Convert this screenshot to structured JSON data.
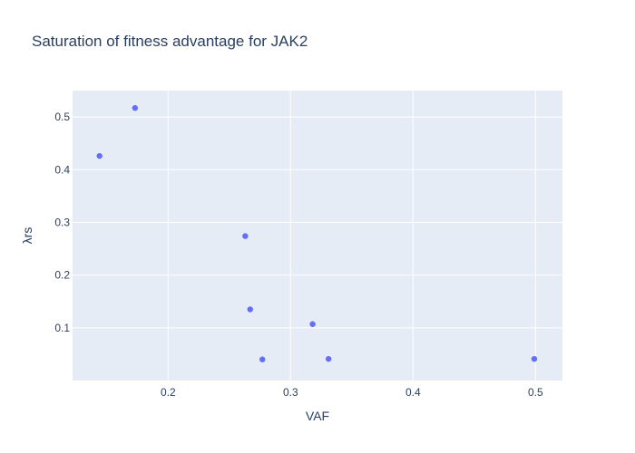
{
  "chart_data": {
    "type": "scatter",
    "title": "Saturation of fitness advantage for JAK2",
    "xlabel": "VAF",
    "ylabel": "λrs",
    "xlim": [
      0.122,
      0.522
    ],
    "ylim": [
      0.0,
      0.55
    ],
    "x_ticks": [
      0.2,
      0.3,
      0.4,
      0.5
    ],
    "x_tick_labels": [
      "0.2",
      "0.3",
      "0.4",
      "0.5"
    ],
    "y_ticks": [
      0.1,
      0.2,
      0.3,
      0.4,
      0.5
    ],
    "y_tick_labels": [
      "0.1",
      "0.2",
      "0.3",
      "0.4",
      "0.5"
    ],
    "grid": true,
    "legend": false,
    "marker_color": "#636efa",
    "plot_bg_color": "#e5ecf6",
    "text_color": "#2a3f5f",
    "series": [
      {
        "points": [
          {
            "x": 0.144,
            "y": 0.426
          },
          {
            "x": 0.173,
            "y": 0.517
          },
          {
            "x": 0.263,
            "y": 0.274
          },
          {
            "x": 0.267,
            "y": 0.135
          },
          {
            "x": 0.277,
            "y": 0.04
          },
          {
            "x": 0.318,
            "y": 0.107
          },
          {
            "x": 0.331,
            "y": 0.041
          },
          {
            "x": 0.499,
            "y": 0.041
          }
        ]
      }
    ]
  }
}
